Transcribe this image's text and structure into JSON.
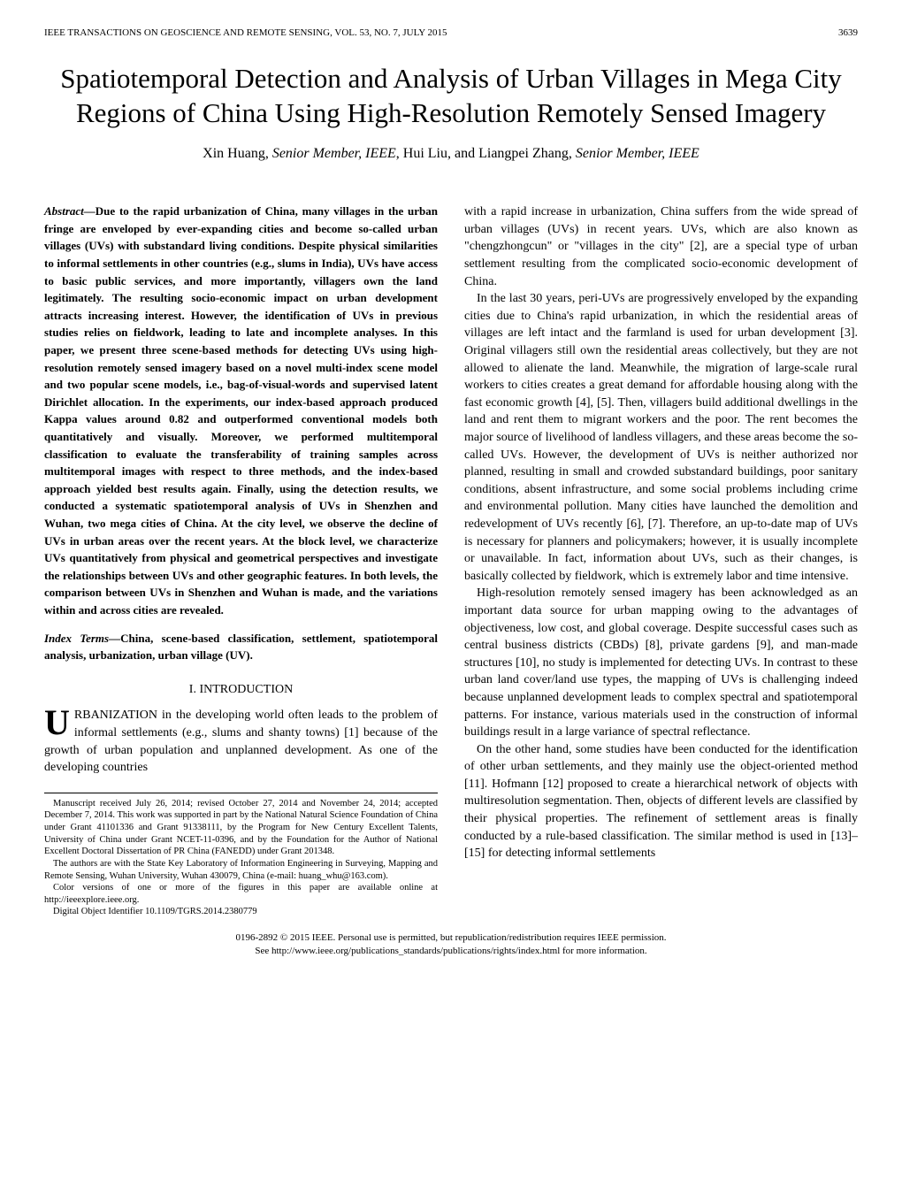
{
  "header": {
    "journal": "IEEE TRANSACTIONS ON GEOSCIENCE AND REMOTE SENSING, VOL. 53, NO. 7, JULY 2015",
    "page_number": "3639"
  },
  "title": "Spatiotemporal Detection and Analysis of Urban Villages in Mega City Regions of China Using High-Resolution Remotely Sensed Imagery",
  "authors": {
    "line": "Xin Huang, Senior Member, IEEE, Hui Liu, and Liangpei Zhang, Senior Member, IEEE",
    "name1": "Xin Huang",
    "title1": "Senior Member, IEEE",
    "name2": "Hui Liu",
    "name3": "Liangpei Zhang",
    "title3": "Senior Member, IEEE"
  },
  "abstract": {
    "label": "Abstract—",
    "text": "Due to the rapid urbanization of China, many villages in the urban fringe are enveloped by ever-expanding cities and become so-called urban villages (UVs) with substandard living conditions. Despite physical similarities to informal settlements in other countries (e.g., slums in India), UVs have access to basic public services, and more importantly, villagers own the land legitimately. The resulting socio-economic impact on urban development attracts increasing interest. However, the identification of UVs in previous studies relies on fieldwork, leading to late and incomplete analyses. In this paper, we present three scene-based methods for detecting UVs using high-resolution remotely sensed imagery based on a novel multi-index scene model and two popular scene models, i.e., bag-of-visual-words and supervised latent Dirichlet allocation. In the experiments, our index-based approach produced Kappa values around 0.82 and outperformed conventional models both quantitatively and visually. Moreover, we performed multitemporal classification to evaluate the transferability of training samples across multitemporal images with respect to three methods, and the index-based approach yielded best results again. Finally, using the detection results, we conducted a systematic spatiotemporal analysis of UVs in Shenzhen and Wuhan, two mega cities of China. At the city level, we observe the decline of UVs in urban areas over the recent years. At the block level, we characterize UVs quantitatively from physical and geometrical perspectives and investigate the relationships between UVs and other geographic features. In both levels, the comparison between UVs in Shenzhen and Wuhan is made, and the variations within and across cities are revealed."
  },
  "index_terms": {
    "label": "Index Terms—",
    "text": "China, scene-based classification, settlement, spatiotemporal analysis, urbanization, urban village (UV)."
  },
  "section1": {
    "heading": "I. INTRODUCTION",
    "dropcap": "U",
    "first_para_rest": "RBANIZATION in the developing world often leads to the problem of informal settlements (e.g., slums and shanty towns) [1] because of the growth of urban population and unplanned development. As one of the developing countries"
  },
  "manuscript": {
    "p1": "Manuscript received July 26, 2014; revised October 27, 2014 and November 24, 2014; accepted December 7, 2014. This work was supported in part by the National Natural Science Foundation of China under Grant 41101336 and Grant 91338111, by the Program for New Century Excellent Talents, University of China under Grant NCET-11-0396, and by the Foundation for the Author of National Excellent Doctoral Dissertation of PR China (FANEDD) under Grant 201348.",
    "p2": "The authors are with the State Key Laboratory of Information Engineering in Surveying, Mapping and Remote Sensing, Wuhan University, Wuhan 430079, China (e-mail: huang_whu@163.com).",
    "p3": "Color versions of one or more of the figures in this paper are available online at http://ieeexplore.ieee.org.",
    "p4": "Digital Object Identifier 10.1109/TGRS.2014.2380779"
  },
  "right_col": {
    "p1": "with a rapid increase in urbanization, China suffers from the wide spread of urban villages (UVs) in recent years. UVs, which are also known as \"chengzhongcun\" or \"villages in the city\" [2], are a special type of urban settlement resulting from the complicated socio-economic development of China.",
    "p2": "In the last 30 years, peri-UVs are progressively enveloped by the expanding cities due to China's rapid urbanization, in which the residential areas of villages are left intact and the farmland is used for urban development [3]. Original villagers still own the residential areas collectively, but they are not allowed to alienate the land. Meanwhile, the migration of large-scale rural workers to cities creates a great demand for affordable housing along with the fast economic growth [4], [5]. Then, villagers build additional dwellings in the land and rent them to migrant workers and the poor. The rent becomes the major source of livelihood of landless villagers, and these areas become the so-called UVs. However, the development of UVs is neither authorized nor planned, resulting in small and crowded substandard buildings, poor sanitary conditions, absent infrastructure, and some social problems including crime and environmental pollution. Many cities have launched the demolition and redevelopment of UVs recently [6], [7]. Therefore, an up-to-date map of UVs is necessary for planners and policymakers; however, it is usually incomplete or unavailable. In fact, information about UVs, such as their changes, is basically collected by fieldwork, which is extremely labor and time intensive.",
    "p3": "High-resolution remotely sensed imagery has been acknowledged as an important data source for urban mapping owing to the advantages of objectiveness, low cost, and global coverage. Despite successful cases such as central business districts (CBDs) [8], private gardens [9], and man-made structures [10], no study is implemented for detecting UVs. In contrast to these urban land cover/land use types, the mapping of UVs is challenging indeed because unplanned development leads to complex spectral and spatiotemporal patterns. For instance, various materials used in the construction of informal buildings result in a large variance of spectral reflectance.",
    "p4": "On the other hand, some studies have been conducted for the identification of other urban settlements, and they mainly use the object-oriented method [11]. Hofmann [12] proposed to create a hierarchical network of objects with multiresolution segmentation. Then, objects of different levels are classified by their physical properties. The refinement of settlement areas is finally conducted by a rule-based classification. The similar method is used in [13]–[15] for detecting informal settlements"
  },
  "footer": {
    "line1": "0196-2892 © 2015 IEEE. Personal use is permitted, but republication/redistribution requires IEEE permission.",
    "line2": "See http://www.ieee.org/publications_standards/publications/rights/index.html for more information."
  }
}
